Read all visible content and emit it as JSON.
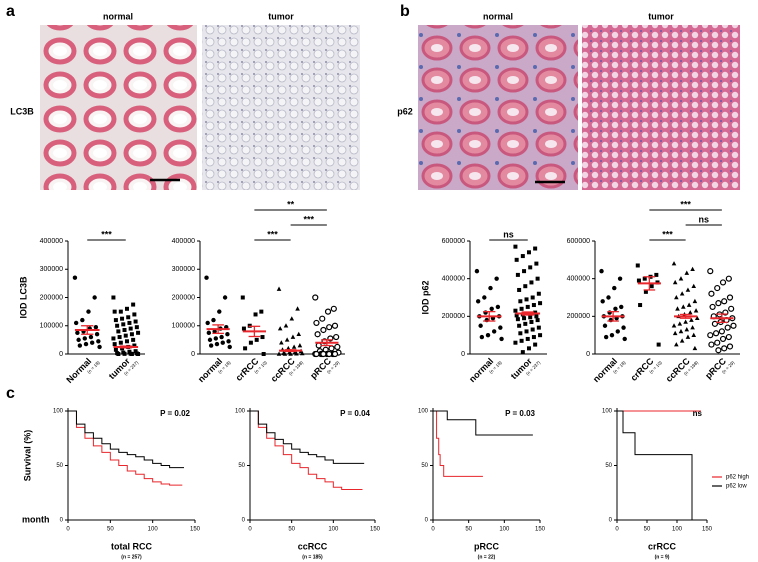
{
  "panel_labels": [
    "a",
    "b",
    "c"
  ],
  "images": [
    {
      "stain": "LC3B",
      "titles": [
        "normal",
        "tumor"
      ]
    },
    {
      "stain": "p62",
      "titles": [
        "normal",
        "tumor"
      ]
    }
  ],
  "chart_data": [
    {
      "type": "dot",
      "ylabel": "IOD LC3B",
      "ylim": [
        0,
        400000
      ],
      "yticks": [
        0,
        100000,
        200000,
        300000,
        400000
      ],
      "mean_color": "#e8262b",
      "groups": [
        {
          "name": "Normal",
          "n": "(n = 18)",
          "marker": "circle",
          "mean": 85000,
          "sem": 15000,
          "points": [
            270000,
            200000,
            150000,
            120000,
            110000,
            95000,
            90000,
            80000,
            75000,
            70000,
            60000,
            55000,
            50000,
            45000,
            40000,
            35000,
            30000,
            25000
          ]
        },
        {
          "name": "tumor",
          "n": "(n = 237)",
          "marker": "square",
          "mean": 25000,
          "sem": 3000,
          "points": [
            200000,
            175000,
            160000,
            150000,
            150000,
            140000,
            130000,
            125000,
            120000,
            115000,
            110000,
            105000,
            100000,
            95000,
            90000,
            85000,
            80000,
            75000,
            70000,
            65000,
            60000,
            55000,
            50000,
            45000,
            40000,
            35000,
            30000,
            25000,
            20000,
            15000,
            10000,
            8000,
            5000,
            3000,
            2000,
            1000,
            500,
            0,
            0,
            0
          ]
        }
      ],
      "comparisons": [
        {
          "between": [
            0,
            1
          ],
          "label": "***"
        }
      ]
    },
    {
      "type": "dot",
      "ylim": [
        0,
        400000
      ],
      "yticks": [
        0,
        100000,
        200000,
        300000,
        400000
      ],
      "mean_color": "#e8262b",
      "groups": [
        {
          "name": "normal",
          "n": "(n = 18)",
          "marker": "circle",
          "mean": 88000,
          "sem": 15000,
          "points": [
            270000,
            200000,
            150000,
            120000,
            110000,
            95000,
            90000,
            80000,
            75000,
            70000,
            60000,
            55000,
            50000,
            45000,
            40000,
            35000,
            30000,
            25000
          ]
        },
        {
          "name": "crRCC",
          "n": "(n = 10)",
          "marker": "square",
          "mean": 80000,
          "sem": 18000,
          "points": [
            200000,
            150000,
            140000,
            100000,
            90000,
            60000,
            50000,
            40000,
            20000,
            0
          ]
        },
        {
          "name": "ccRCC",
          "n": "(n = 198)",
          "marker": "triangle",
          "mean": 12000,
          "sem": 3000,
          "points": [
            230000,
            160000,
            125000,
            100000,
            90000,
            70000,
            60000,
            50000,
            40000,
            30000,
            25000,
            20000,
            15000,
            10000,
            8000,
            5000,
            3000,
            2000,
            1000,
            0,
            0,
            0
          ]
        },
        {
          "name": "pRCC",
          "n": "(n = 29)",
          "marker": "open-circle",
          "mean": 40000,
          "sem": 10000,
          "points": [
            200000,
            160000,
            150000,
            125000,
            110000,
            100000,
            95000,
            85000,
            70000,
            60000,
            55000,
            45000,
            30000,
            25000,
            20000,
            15000,
            10000,
            5000,
            0,
            0,
            0,
            0,
            0,
            0,
            0,
            0,
            0,
            0,
            0
          ]
        }
      ],
      "comparisons": [
        {
          "between": [
            1,
            2
          ],
          "label": "***"
        },
        {
          "between": [
            2,
            3
          ],
          "label": "***"
        },
        {
          "between": [
            1,
            3
          ],
          "label": "**"
        }
      ]
    },
    {
      "type": "dot",
      "ylabel": "IOD p62",
      "ylim": [
        0,
        600000
      ],
      "yticks": [
        0,
        200000,
        400000,
        600000
      ],
      "mean_color": "#e8262b",
      "groups": [
        {
          "name": "normal",
          "n": "(n = 18)",
          "marker": "circle",
          "mean": 200000,
          "sem": 25000,
          "points": [
            440000,
            400000,
            350000,
            300000,
            280000,
            250000,
            240000,
            220000,
            200000,
            200000,
            190000,
            180000,
            150000,
            140000,
            120000,
            100000,
            90000,
            80000
          ]
        },
        {
          "name": "tumor",
          "n": "(n = 237)",
          "marker": "square",
          "mean": 215000,
          "sem": 8000,
          "points": [
            570000,
            560000,
            540000,
            520000,
            500000,
            480000,
            460000,
            440000,
            420000,
            400000,
            380000,
            360000,
            340000,
            320000,
            300000,
            290000,
            280000,
            270000,
            260000,
            250000,
            240000,
            230000,
            220000,
            215000,
            210000,
            205000,
            200000,
            195000,
            190000,
            185000,
            180000,
            170000,
            160000,
            150000,
            140000,
            130000,
            120000,
            110000,
            100000,
            90000,
            80000,
            70000,
            60000,
            50000,
            30000,
            10000
          ]
        }
      ],
      "comparisons": [
        {
          "between": [
            0,
            1
          ],
          "label": "ns"
        }
      ]
    },
    {
      "type": "dot",
      "ylim": [
        0,
        600000
      ],
      "yticks": [
        0,
        200000,
        400000,
        600000
      ],
      "mean_color": "#e8262b",
      "groups": [
        {
          "name": "normal",
          "n": "(n = 18)",
          "marker": "circle",
          "mean": 200000,
          "sem": 25000,
          "points": [
            440000,
            400000,
            350000,
            300000,
            280000,
            250000,
            240000,
            220000,
            200000,
            200000,
            190000,
            180000,
            150000,
            140000,
            120000,
            100000,
            90000,
            80000
          ]
        },
        {
          "name": "crRCC",
          "n": "(n = 10)",
          "marker": "square",
          "mean": 375000,
          "sem": 35000,
          "points": [
            470000,
            420000,
            410000,
            400000,
            390000,
            380000,
            360000,
            330000,
            260000,
            50000
          ]
        },
        {
          "name": "ccRCC",
          "n": "(n = 198)",
          "marker": "triangle",
          "mean": 200000,
          "sem": 10000,
          "points": [
            480000,
            450000,
            430000,
            400000,
            380000,
            360000,
            340000,
            320000,
            300000,
            280000,
            260000,
            250000,
            240000,
            230000,
            220000,
            210000,
            200000,
            190000,
            180000,
            170000,
            160000,
            150000,
            140000,
            130000,
            120000,
            110000,
            100000,
            90000,
            70000,
            50000,
            30000
          ]
        },
        {
          "name": "pRCC",
          "n": "(n = 29)",
          "marker": "open-circle",
          "mean": 190000,
          "sem": 22000,
          "points": [
            440000,
            400000,
            380000,
            350000,
            320000,
            300000,
            280000,
            270000,
            250000,
            240000,
            220000,
            210000,
            200000,
            190000,
            180000,
            170000,
            160000,
            150000,
            140000,
            120000,
            110000,
            100000,
            90000,
            80000,
            60000,
            50000,
            40000,
            30000,
            20000
          ]
        }
      ],
      "comparisons": [
        {
          "between": [
            1,
            2
          ],
          "label": "***"
        },
        {
          "between": [
            2,
            3
          ],
          "label": "ns"
        },
        {
          "between": [
            1,
            3
          ],
          "label": "***"
        }
      ]
    },
    {
      "type": "km",
      "title": "total RCC",
      "subtitle": "(n = 257)",
      "annotation": "P = 0.02",
      "ylabel": "Survival (%)",
      "xlabel": "month",
      "xlim": [
        0,
        150
      ],
      "xticks": [
        0,
        50,
        100,
        150
      ],
      "ylim": [
        0,
        100
      ],
      "yticks": [
        0,
        50,
        100
      ],
      "series": [
        {
          "color": "#e8262b",
          "x": [
            0,
            10,
            20,
            30,
            40,
            50,
            60,
            70,
            80,
            90,
            100,
            110,
            120,
            135
          ],
          "values": [
            100,
            85,
            75,
            68,
            62,
            55,
            50,
            45,
            42,
            38,
            35,
            33,
            32,
            32
          ]
        },
        {
          "color": "#000000",
          "x": [
            0,
            10,
            20,
            30,
            40,
            50,
            60,
            70,
            80,
            90,
            100,
            110,
            120,
            137
          ],
          "values": [
            100,
            88,
            80,
            75,
            70,
            65,
            62,
            60,
            58,
            55,
            52,
            50,
            48,
            48
          ]
        }
      ]
    },
    {
      "type": "km",
      "title": "ccRCC",
      "subtitle": "(n = 185)",
      "annotation": "P = 0.04",
      "xlim": [
        0,
        150
      ],
      "xticks": [
        0,
        50,
        100,
        150
      ],
      "ylim": [
        0,
        100
      ],
      "yticks": [
        0,
        50,
        100
      ],
      "series": [
        {
          "color": "#e8262b",
          "x": [
            0,
            10,
            20,
            30,
            40,
            50,
            60,
            70,
            80,
            90,
            100,
            110,
            120,
            135
          ],
          "values": [
            100,
            85,
            75,
            68,
            60,
            52,
            48,
            42,
            38,
            35,
            30,
            28,
            28,
            28
          ]
        },
        {
          "color": "#000000",
          "x": [
            0,
            10,
            20,
            30,
            40,
            50,
            60,
            70,
            80,
            90,
            100,
            110,
            120,
            137
          ],
          "values": [
            100,
            88,
            80,
            74,
            70,
            65,
            62,
            60,
            58,
            55,
            52,
            52,
            52,
            52
          ]
        }
      ]
    },
    {
      "type": "km",
      "title": "pRCC",
      "subtitle": "(n = 22)",
      "annotation": "P = 0.03",
      "xlim": [
        0,
        150
      ],
      "xticks": [
        0,
        50,
        100,
        150
      ],
      "ylim": [
        0,
        100
      ],
      "yticks": [
        0,
        50,
        100
      ],
      "series": [
        {
          "color": "#e8262b",
          "x": [
            0,
            5,
            8,
            10,
            15,
            20,
            70
          ],
          "values": [
            100,
            75,
            60,
            50,
            40,
            40,
            40
          ]
        },
        {
          "color": "#000000",
          "x": [
            0,
            20,
            40,
            60,
            140
          ],
          "values": [
            100,
            92,
            92,
            78,
            78
          ]
        }
      ]
    },
    {
      "type": "km",
      "title": "crRCC",
      "subtitle": "(n = 9)",
      "annotation": "ns",
      "legend": "upper right",
      "xlim": [
        0,
        150
      ],
      "xticks": [
        0,
        50,
        100,
        150
      ],
      "ylim": [
        0,
        100
      ],
      "yticks": [
        0,
        50,
        100
      ],
      "series": [
        {
          "name": "p62 high",
          "color": "#e8262b",
          "x": [
            0,
            140
          ],
          "values": [
            100,
            100
          ]
        },
        {
          "name": "p62 low",
          "color": "#000000",
          "x": [
            0,
            10,
            30,
            120,
            125
          ],
          "values": [
            100,
            80,
            60,
            60,
            0
          ]
        }
      ]
    }
  ]
}
